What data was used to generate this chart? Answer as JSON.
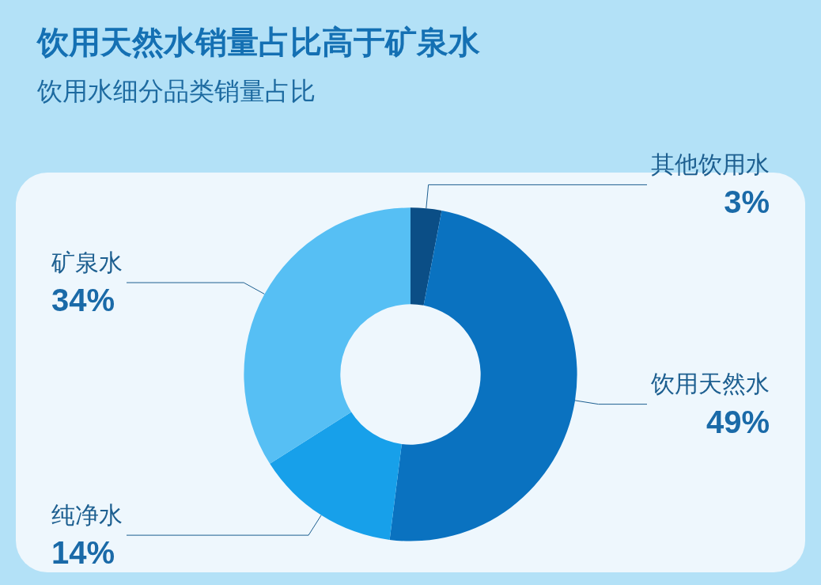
{
  "chart_data": {
    "type": "donut",
    "title": "饮用天然水销量占比高于矿泉水",
    "subtitle": "饮用水细分品类销量占比",
    "categories": [
      "其他饮用水",
      "饮用天然水",
      "纯净水",
      "矿泉水"
    ],
    "values": [
      3,
      49,
      14,
      34
    ],
    "colors": [
      "#0b4e86",
      "#0a72c0",
      "#17a0ea",
      "#56bff4"
    ],
    "value_labels": [
      "3%",
      "49%",
      "14%",
      "34%"
    ],
    "legend": false
  }
}
